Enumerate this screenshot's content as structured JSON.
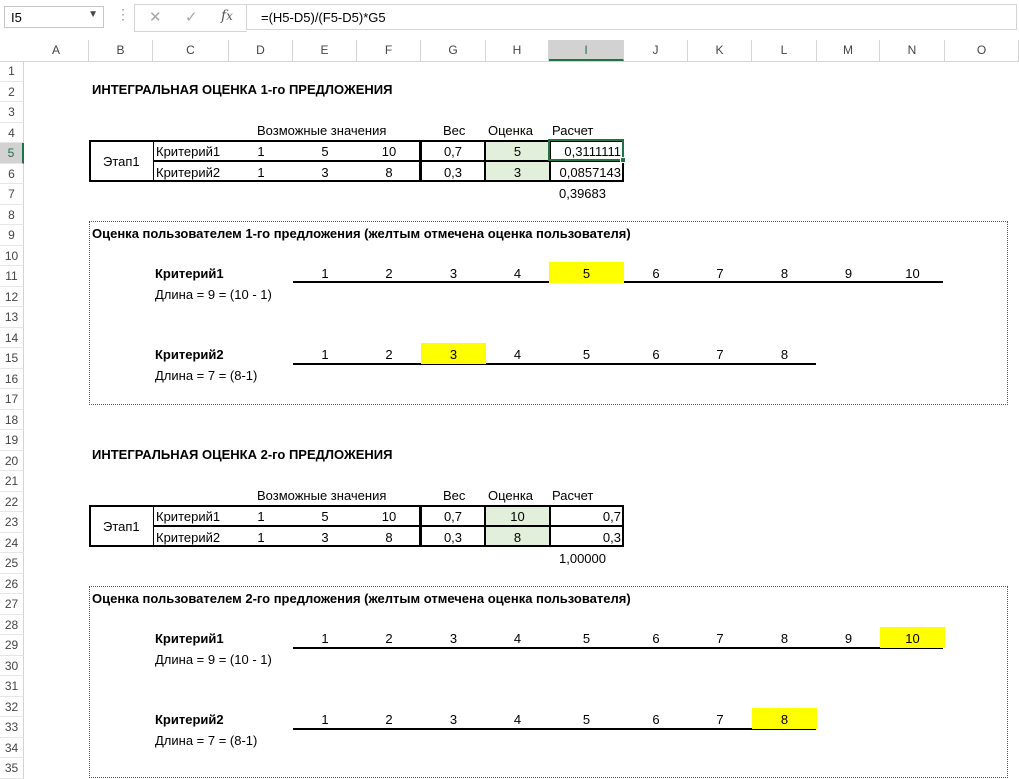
{
  "formula_bar": {
    "name_box": "I5",
    "formula": "=(H5-D5)/(F5-D5)*G5",
    "cancel_icon": "x-icon",
    "enter_icon": "check-icon",
    "function_icon": "fx-icon"
  },
  "columns": [
    "A",
    "B",
    "C",
    "D",
    "E",
    "F",
    "G",
    "H",
    "I",
    "J",
    "K",
    "L",
    "M",
    "N",
    "O"
  ],
  "rows": [
    "1",
    "2",
    "3",
    "4",
    "5",
    "6",
    "7",
    "8",
    "9",
    "10",
    "11",
    "12",
    "13",
    "14",
    "15",
    "16",
    "17",
    "18",
    "19",
    "20",
    "21",
    "22",
    "23",
    "24",
    "25",
    "26",
    "27",
    "28",
    "29",
    "30",
    "31",
    "32",
    "33",
    "34",
    "35"
  ],
  "selected_cell": {
    "col": "I",
    "row": "5"
  },
  "block1": {
    "title": "ИНТЕГРАЛЬНАЯ ОЦЕНКА 1-го ПРЕДЛОЖЕНИЯ",
    "hdr_values": "Возможные значения",
    "hdr_weight": "Вес",
    "hdr_score": "Оценка",
    "hdr_calc": "Расчет",
    "stage": "Этап1",
    "rows": [
      {
        "crit": "Критерий1",
        "d": "1",
        "e": "5",
        "f": "10",
        "weight": "0,7",
        "score": "5",
        "calc": "0,3111111"
      },
      {
        "crit": "Критерий2",
        "d": "1",
        "e": "3",
        "f": "8",
        "weight": "0,3",
        "score": "3",
        "calc": "0,0857143"
      }
    ],
    "total": "0,39683"
  },
  "user1": {
    "title": "Оценка пользователем 1-го предложения (желтым отмечена оценка пользователя)",
    "crit1_label": "Критерий1",
    "crit1_len": "Длина = 9 = (10 - 1)",
    "crit1_scale": [
      "1",
      "2",
      "3",
      "4",
      "5",
      "6",
      "7",
      "8",
      "9",
      "10"
    ],
    "crit1_selected": "5",
    "crit2_label": "Критерий2",
    "crit2_len": "Длина = 7 = (8-1)",
    "crit2_scale": [
      "1",
      "2",
      "3",
      "4",
      "5",
      "6",
      "7",
      "8"
    ],
    "crit2_selected": "3"
  },
  "block2": {
    "title": "ИНТЕГРАЛЬНАЯ ОЦЕНКА 2-го ПРЕДЛОЖЕНИЯ",
    "hdr_values": "Возможные значения",
    "hdr_weight": "Вес",
    "hdr_score": "Оценка",
    "hdr_calc": "Расчет",
    "stage": "Этап1",
    "rows": [
      {
        "crit": "Критерий1",
        "d": "1",
        "e": "5",
        "f": "10",
        "weight": "0,7",
        "score": "10",
        "calc": "0,7"
      },
      {
        "crit": "Критерий2",
        "d": "1",
        "e": "3",
        "f": "8",
        "weight": "0,3",
        "score": "8",
        "calc": "0,3"
      }
    ],
    "total": "1,00000"
  },
  "user2": {
    "title": "Оценка пользователем 2-го предложения (желтым отмечена оценка пользователя)",
    "crit1_label": "Критерий1",
    "crit1_len": "Длина = 9 = (10 - 1)",
    "crit1_scale": [
      "1",
      "2",
      "3",
      "4",
      "5",
      "6",
      "7",
      "8",
      "9",
      "10"
    ],
    "crit1_selected": "10",
    "crit2_label": "Критерий2",
    "crit2_len": "Длина = 7 = (8-1)",
    "crit2_scale": [
      "1",
      "2",
      "3",
      "4",
      "5",
      "6",
      "7",
      "8"
    ],
    "crit2_selected": "8"
  },
  "colors": {
    "green_fill": "#e2efda",
    "yellow_fill": "#ffff00",
    "selection": "#217346"
  }
}
